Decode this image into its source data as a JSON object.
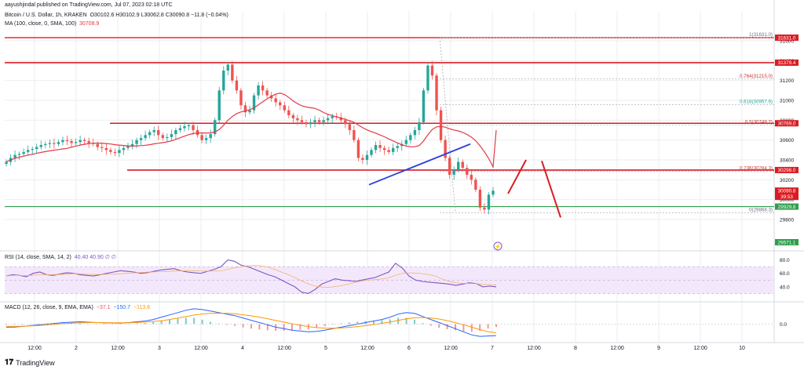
{
  "publisher": "aayushjindal published on TradingView.com, Jul 07, 2023 02:18 UTC",
  "legend": {
    "symbol": "Bitcoin / U.S. Dollar, 1h, KRAKEN",
    "ohlc": "O30102.6 H30102.9 L30062.8 C30090.8 −11.8 (−0.04%)",
    "ma": "MA (100, close, 0, SMA, 100)",
    "ma_value": "30708.9",
    "rsi": "RSI (14, close, SMA, 14, 2)",
    "rsi_values": "40.40  40.90  ∅  ∅",
    "macd": "MACD (12, 26, close, 9, EMA, EMA)",
    "macd_v1": "−37.1",
    "macd_v2": "−150.7",
    "macd_v3": "−113.6"
  },
  "brand": "TradingView",
  "colors": {
    "up": "#26a69a",
    "down": "#ef5350",
    "ma": "#e53945",
    "level": "#d91c22",
    "support": "#2e9e4a",
    "trend": "#2b3fd8",
    "rsi_line": "#7e57c2",
    "rsi_band": "#f3e8fb",
    "macd_line": "#2962ff",
    "signal_line": "#ff9800",
    "grid": "#eceef2"
  },
  "chart_data": [
    {
      "type": "candlestick",
      "name": "BTCUSD 1h",
      "x_ticks": [
        "12:00",
        "2",
        "12:00",
        "3",
        "12:00",
        "4",
        "12:00",
        "5",
        "12:00",
        "6",
        "12:00",
        "7",
        "12:00",
        "8",
        "12:00",
        "9",
        "12:00",
        "10"
      ],
      "y_ticks": [
        29800,
        30000,
        30200,
        30400,
        30600,
        30800,
        31000,
        31200,
        31400,
        31600
      ],
      "ylim": [
        29500,
        31900
      ],
      "tick_step": 200,
      "close_path": [
        30380,
        30420,
        30450,
        30460,
        30480,
        30500,
        30510,
        30530,
        30550,
        30560,
        30570,
        30560,
        30580,
        30600,
        30590,
        30570,
        30580,
        30600,
        30590,
        30570,
        30560,
        30530,
        30520,
        30500,
        30480,
        30470,
        30500,
        30520,
        30540,
        30560,
        30600,
        30620,
        30650,
        30680,
        30700,
        30650,
        30620,
        30630,
        30660,
        30700,
        30720,
        30740,
        30750,
        30700,
        30650,
        30600,
        30620,
        30660,
        30800,
        31100,
        31300,
        31360,
        31200,
        31100,
        30950,
        30880,
        30900,
        31050,
        31150,
        31100,
        31050,
        31020,
        30980,
        30950,
        30900,
        30850,
        30820,
        30800,
        30780,
        30760,
        30780,
        30800,
        30780,
        30800,
        30820,
        30840,
        30830,
        30800,
        30760,
        30700,
        30600,
        30420,
        30400,
        30450,
        30500,
        30550,
        30520,
        30500,
        30480,
        30520,
        30540,
        30560,
        30600,
        30650,
        30700,
        30780,
        31100,
        31350,
        31250,
        30900,
        30600,
        30420,
        30250,
        30300,
        30380,
        30320,
        30250,
        30200,
        30100,
        29920,
        29900,
        30050,
        30090
      ],
      "levels": [
        {
          "value": 31631.0,
          "label": "31631.0"
        },
        {
          "value": 31379.4,
          "label": "31379.4"
        },
        {
          "value": 30769.0,
          "label": "30769.0"
        },
        {
          "value": 30298.0,
          "label": "30298.0"
        },
        {
          "value": 30090.8,
          "label": "30090.8"
        },
        {
          "value": 29929.8,
          "label": "29929.8"
        },
        {
          "value": 29571.1,
          "label": "29571.1"
        }
      ],
      "countdown": "39:53",
      "fibonacci": [
        {
          "ratio": "1",
          "value": 31631.0,
          "label": "1(31631.0)"
        },
        {
          "ratio": "0.764",
          "value": 31215.0,
          "label": "0.764(31215.0)"
        },
        {
          "ratio": "0.618",
          "value": 30957.6,
          "label": "0.618(30957.6)"
        },
        {
          "ratio": "0.5",
          "value": 30749.7,
          "label": "0.5(30749.7)"
        },
        {
          "ratio": "0.236",
          "value": 30284.3,
          "label": "0.236(30284.3)"
        },
        {
          "ratio": "0",
          "value": 29868.3,
          "label": "0(29868.3)"
        }
      ]
    },
    {
      "type": "line",
      "name": "RSI (14)",
      "y_ticks": [
        40.0,
        60.0,
        80.0
      ],
      "ylim": [
        20,
        90
      ],
      "band": [
        30,
        70
      ],
      "values": [
        56,
        58,
        57,
        55,
        60,
        62,
        58,
        57,
        59,
        61,
        60,
        58,
        57,
        56,
        58,
        60,
        62,
        64,
        63,
        62,
        60,
        61,
        63,
        65,
        66,
        67,
        64,
        62,
        61,
        60,
        63,
        66,
        70,
        80,
        78,
        72,
        70,
        66,
        62,
        58,
        55,
        50,
        45,
        40,
        32,
        30,
        36,
        44,
        48,
        52,
        50,
        49,
        48,
        50,
        52,
        54,
        58,
        62,
        75,
        68,
        56,
        50,
        48,
        47,
        46,
        45,
        44,
        42,
        44,
        46,
        45,
        40,
        41,
        40
      ]
    },
    {
      "type": "histogram+line",
      "name": "MACD (12, 26, 9)",
      "y_ticks": [
        0.0
      ],
      "ylim": [
        -220,
        260
      ],
      "macd": [
        -40,
        -38,
        -30,
        -20,
        -10,
        0,
        10,
        20,
        25,
        30,
        25,
        20,
        18,
        15,
        14,
        20,
        30,
        40,
        60,
        90,
        120,
        150,
        180,
        200,
        190,
        170,
        150,
        130,
        110,
        80,
        50,
        20,
        -10,
        -40,
        -60,
        -80,
        -90,
        -100,
        -95,
        -80,
        -60,
        -40,
        -20,
        0,
        20,
        40,
        60,
        90,
        130,
        150,
        140,
        100,
        60,
        20,
        -20,
        -60,
        -100,
        -140,
        -160,
        -155,
        -150
      ],
      "signal": [
        -30,
        -30,
        -28,
        -24,
        -18,
        -10,
        -2,
        6,
        12,
        18,
        20,
        20,
        19,
        18,
        17,
        18,
        21,
        26,
        34,
        45,
        60,
        78,
        98,
        118,
        132,
        140,
        142,
        140,
        134,
        122,
        108,
        90,
        70,
        48,
        26,
        5,
        -15,
        -32,
        -45,
        -52,
        -54,
        -50,
        -42,
        -32,
        -20,
        -6,
        10,
        28,
        48,
        68,
        82,
        86,
        80,
        66,
        46,
        20,
        -8,
        -40,
        -72,
        -98,
        -113
      ]
    }
  ]
}
